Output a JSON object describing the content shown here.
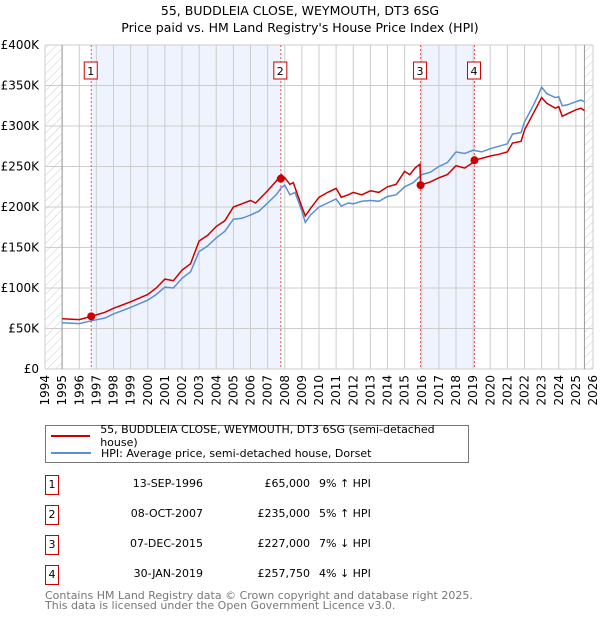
{
  "header": {
    "title": "55, BUDDLEIA CLOSE, WEYMOUTH, DT3 6SG",
    "subtitle": "Price paid vs. HM Land Registry's House Price Index (HPI)"
  },
  "colors": {
    "property": "#cc0000",
    "hpi": "#5b8fd4",
    "shade": "#eef3fd"
  },
  "chart_data": {
    "type": "line",
    "title": "55, BUDDLEIA CLOSE, WEYMOUTH, DT3 6SG",
    "subtitle": "Price paid vs. HM Land Registry's House Price Index (HPI)",
    "xlim": [
      1994,
      2026
    ],
    "ylim": [
      0,
      400000
    ],
    "x_ticks": [
      "1994",
      "1995",
      "1996",
      "1997",
      "1998",
      "1999",
      "2000",
      "2001",
      "2002",
      "2003",
      "2004",
      "2005",
      "2006",
      "2007",
      "2008",
      "2009",
      "2010",
      "2011",
      "2012",
      "2013",
      "2014",
      "2015",
      "2016",
      "2017",
      "2018",
      "2019",
      "2020",
      "2021",
      "2022",
      "2023",
      "2024",
      "2025",
      "2026"
    ],
    "y_ticks": [
      {
        "v": 0,
        "label": "£0"
      },
      {
        "v": 50000,
        "label": "£50K"
      },
      {
        "v": 100000,
        "label": "£100K"
      },
      {
        "v": 150000,
        "label": "£150K"
      },
      {
        "v": 200000,
        "label": "£200K"
      },
      {
        "v": 250000,
        "label": "£250K"
      },
      {
        "v": 300000,
        "label": "£300K"
      },
      {
        "v": 350000,
        "label": "£350K"
      },
      {
        "v": 400000,
        "label": "£400K"
      }
    ],
    "grid": true,
    "series": [
      {
        "name": "55, BUDDLEIA CLOSE, WEYMOUTH, DT3 6SG (semi-detached house)",
        "color": "#cc0000",
        "x": [
          1995,
          1996,
          1996.7,
          1997.5,
          1998,
          1999,
          2000,
          2000.5,
          2001,
          2001.5,
          2002,
          2002.5,
          2003,
          2003.5,
          2004,
          2004.5,
          2005,
          2005.5,
          2006,
          2006.3,
          2007,
          2007.5,
          2007.8,
          2008,
          2008.3,
          2008.5,
          2009,
          2009.2,
          2009.5,
          2010,
          2010.5,
          2011,
          2011.3,
          2011.7,
          2012,
          2012.5,
          2013,
          2013.5,
          2014,
          2014.5,
          2015,
          2015.3,
          2015.6,
          2015.9,
          2015.93,
          2016.5,
          2017,
          2017.5,
          2018,
          2018.5,
          2019,
          2019.1,
          2019.5,
          2020,
          2020.5,
          2021,
          2021.3,
          2021.8,
          2022,
          2022.5,
          2022.8,
          2023,
          2023.3,
          2023.8,
          2024,
          2024.2,
          2024.5,
          2025,
          2025.3,
          2025.5
        ],
        "y": [
          62,
          61,
          65,
          70,
          75,
          83,
          92,
          100,
          111,
          109,
          122,
          130,
          158,
          165,
          176,
          183,
          200,
          204,
          208,
          205,
          220,
          232,
          240,
          236,
          228,
          230,
          200,
          189,
          198,
          212,
          218,
          223,
          212,
          215,
          218,
          215,
          220,
          218,
          225,
          228,
          244,
          240,
          248,
          253,
          227,
          231,
          236,
          240,
          251,
          248,
          255,
          258,
          260,
          263,
          265,
          268,
          279,
          281,
          295,
          315,
          327,
          335,
          328,
          322,
          324,
          312,
          315,
          320,
          322,
          319
        ]
      },
      {
        "name": "HPI: Average price, semi-detached house, Dorset",
        "color": "#5b8fd4",
        "x": [
          1995,
          1996,
          1996.7,
          1997.5,
          1998,
          1999,
          2000,
          2000.5,
          2001,
          2001.5,
          2002,
          2002.5,
          2003,
          2003.5,
          2004,
          2004.5,
          2005,
          2005.5,
          2006,
          2006.5,
          2007,
          2007.5,
          2007.8,
          2008,
          2008.3,
          2008.6,
          2009,
          2009.2,
          2009.5,
          2010,
          2010.5,
          2011,
          2011.3,
          2011.7,
          2012,
          2012.5,
          2013,
          2013.5,
          2014,
          2014.5,
          2015,
          2015.5,
          2016,
          2016.5,
          2017,
          2017.5,
          2018,
          2018.5,
          2019,
          2019.5,
          2020,
          2020.5,
          2021,
          2021.3,
          2021.8,
          2022,
          2022.5,
          2022.8,
          2023,
          2023.3,
          2023.8,
          2024,
          2024.2,
          2024.5,
          2025,
          2025.3,
          2025.5
        ],
        "y": [
          57,
          56,
          59.5,
          63,
          68,
          76,
          85,
          92,
          101,
          100,
          112,
          120,
          145,
          152,
          162,
          170,
          185,
          186,
          190,
          195,
          205,
          215,
          224,
          227,
          215,
          218,
          195,
          181,
          190,
          200,
          205,
          210,
          201,
          205,
          204,
          207,
          208,
          207,
          213,
          215,
          225,
          230,
          240,
          243,
          250,
          255,
          268,
          266,
          270,
          268,
          272,
          275,
          278,
          290,
          292,
          305,
          325,
          338,
          348,
          340,
          335,
          336,
          325,
          326,
          330,
          332,
          330
        ]
      }
    ],
    "y_units": "thousands GBP",
    "sales": [
      {
        "num": "1",
        "x": 1996.7,
        "price": 65000
      },
      {
        "num": "2",
        "x": 2007.77,
        "price": 235000
      },
      {
        "num": "3",
        "x": 2015.93,
        "price": 227000
      },
      {
        "num": "4",
        "x": 2019.08,
        "price": 257750
      }
    ],
    "shaded_ranges": [
      [
        1996.7,
        2007.77
      ],
      [
        2015.93,
        2019.08
      ]
    ],
    "hatched_ranges": [
      [
        1994,
        1995
      ],
      [
        2025.5,
        2026
      ]
    ],
    "legend_position": "bottom"
  },
  "legend": {
    "property": "55, BUDDLEIA CLOSE, WEYMOUTH, DT3 6SG (semi-detached house)",
    "hpi": "HPI: Average price, semi-detached house, Dorset"
  },
  "transactions": [
    {
      "num": "1",
      "date": "13-SEP-1996",
      "price": "£65,000",
      "hpi": "9% ↑ HPI"
    },
    {
      "num": "2",
      "date": "08-OCT-2007",
      "price": "£235,000",
      "hpi": "5% ↑ HPI"
    },
    {
      "num": "3",
      "date": "07-DEC-2015",
      "price": "£227,000",
      "hpi": "7% ↓ HPI"
    },
    {
      "num": "4",
      "date": "30-JAN-2019",
      "price": "£257,750",
      "hpi": "4% ↓ HPI"
    }
  ],
  "footer": {
    "line1": "Contains HM Land Registry data © Crown copyright and database right 2025.",
    "line2": "This data is licensed under the Open Government Licence v3.0."
  }
}
